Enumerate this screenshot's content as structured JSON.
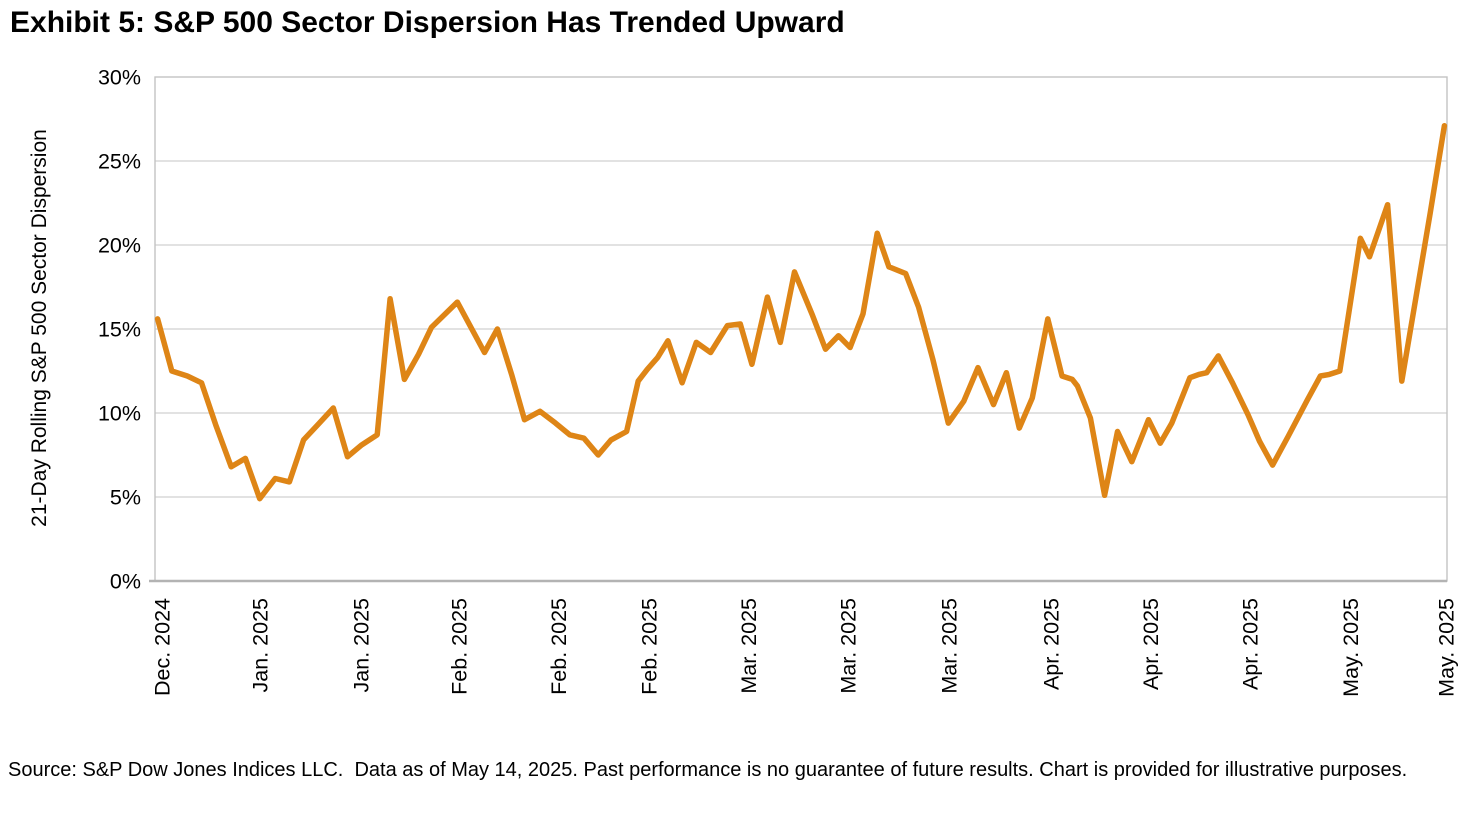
{
  "title": "Exhibit 5: S&P 500 Sector Dispersion Has Trended Upward",
  "footnote": "Source: S&P Dow Jones Indices LLC.  Data as of May 14, 2025. Past performance is no guarantee of future results. Chart is provided for illustrative purposes.",
  "colors": {
    "line": "#DE8516",
    "gridline": "#D9D9D9",
    "plot_border": "#C3C3C3",
    "x_axis": "#B3B3B3",
    "text": "#000000",
    "background": "#FFFFFF"
  },
  "chart_data": {
    "type": "line",
    "title": "Exhibit 5: S&P 500 Sector Dispersion Has Trended Upward",
    "xlabel": "",
    "ylabel": "21-Day Rolling S&P 500 Sector Dispersion",
    "ylim": [
      0,
      30
    ],
    "y_ticks": [
      0,
      5,
      10,
      15,
      20,
      25,
      30
    ],
    "y_tick_labels": [
      "0%",
      "5%",
      "10%",
      "15%",
      "20%",
      "25%",
      "30%"
    ],
    "grid": "horizontal",
    "legend": "none",
    "x_ticks": [
      {
        "pos": 0.005,
        "label": "Dec. 2024"
      },
      {
        "pos": 0.081,
        "label": "Jan. 2025"
      },
      {
        "pos": 0.159,
        "label": "Jan. 2025"
      },
      {
        "pos": 0.235,
        "label": "Feb. 2025"
      },
      {
        "pos": 0.312,
        "label": "Feb. 2025"
      },
      {
        "pos": 0.382,
        "label": "Feb. 2025"
      },
      {
        "pos": 0.459,
        "label": "Mar. 2025"
      },
      {
        "pos": 0.536,
        "label": "Mar. 2025"
      },
      {
        "pos": 0.614,
        "label": "Mar. 2025"
      },
      {
        "pos": 0.693,
        "label": "Apr. 2025"
      },
      {
        "pos": 0.77,
        "label": "Apr. 2025"
      },
      {
        "pos": 0.847,
        "label": "Apr. 2025"
      },
      {
        "pos": 0.925,
        "label": "May. 2025"
      },
      {
        "pos": 0.999,
        "label": "May. 2025"
      }
    ],
    "series": [
      {
        "name": "21-Day Rolling S&P 500 Sector Dispersion (%)",
        "points": [
          [
            0.002,
            15.6
          ],
          [
            0.013,
            12.5
          ],
          [
            0.025,
            12.2
          ],
          [
            0.036,
            11.8
          ],
          [
            0.047,
            9.3
          ],
          [
            0.059,
            6.8
          ],
          [
            0.07,
            7.3
          ],
          [
            0.081,
            4.9
          ],
          [
            0.093,
            6.1
          ],
          [
            0.104,
            5.9
          ],
          [
            0.115,
            8.4
          ],
          [
            0.126,
            9.3
          ],
          [
            0.138,
            10.3
          ],
          [
            0.149,
            7.4
          ],
          [
            0.16,
            8.1
          ],
          [
            0.172,
            8.7
          ],
          [
            0.182,
            16.8
          ],
          [
            0.193,
            12.0
          ],
          [
            0.204,
            13.5
          ],
          [
            0.214,
            15.1
          ],
          [
            0.234,
            16.6
          ],
          [
            0.255,
            13.6
          ],
          [
            0.265,
            15.0
          ],
          [
            0.276,
            12.3
          ],
          [
            0.286,
            9.6
          ],
          [
            0.298,
            10.1
          ],
          [
            0.31,
            9.4
          ],
          [
            0.321,
            8.7
          ],
          [
            0.332,
            8.5
          ],
          [
            0.343,
            7.5
          ],
          [
            0.353,
            8.4
          ],
          [
            0.365,
            8.9
          ],
          [
            0.374,
            11.9
          ],
          [
            0.381,
            12.6
          ],
          [
            0.389,
            13.3
          ],
          [
            0.397,
            14.3
          ],
          [
            0.408,
            11.8
          ],
          [
            0.419,
            14.2
          ],
          [
            0.43,
            13.6
          ],
          [
            0.443,
            15.2
          ],
          [
            0.453,
            15.3
          ],
          [
            0.462,
            12.9
          ],
          [
            0.474,
            16.9
          ],
          [
            0.484,
            14.2
          ],
          [
            0.495,
            18.4
          ],
          [
            0.509,
            15.8
          ],
          [
            0.519,
            13.8
          ],
          [
            0.529,
            14.6
          ],
          [
            0.538,
            13.9
          ],
          [
            0.548,
            15.9
          ],
          [
            0.559,
            20.7
          ],
          [
            0.568,
            18.7
          ],
          [
            0.581,
            18.3
          ],
          [
            0.591,
            16.3
          ],
          [
            0.602,
            13.2
          ],
          [
            0.614,
            9.4
          ],
          [
            0.626,
            10.7
          ],
          [
            0.637,
            12.7
          ],
          [
            0.649,
            10.5
          ],
          [
            0.659,
            12.4
          ],
          [
            0.669,
            9.1
          ],
          [
            0.679,
            10.9
          ],
          [
            0.691,
            15.6
          ],
          [
            0.702,
            12.2
          ],
          [
            0.71,
            12.0
          ],
          [
            0.714,
            11.6
          ],
          [
            0.724,
            9.7
          ],
          [
            0.735,
            5.1
          ],
          [
            0.745,
            8.9
          ],
          [
            0.756,
            7.1
          ],
          [
            0.769,
            9.6
          ],
          [
            0.778,
            8.2
          ],
          [
            0.787,
            9.4
          ],
          [
            0.801,
            12.1
          ],
          [
            0.808,
            12.3
          ],
          [
            0.814,
            12.4
          ],
          [
            0.823,
            13.4
          ],
          [
            0.834,
            11.8
          ],
          [
            0.846,
            9.9
          ],
          [
            0.855,
            8.3
          ],
          [
            0.865,
            6.9
          ],
          [
            0.877,
            8.6
          ],
          [
            0.892,
            10.8
          ],
          [
            0.902,
            12.2
          ],
          [
            0.909,
            12.3
          ],
          [
            0.917,
            12.5
          ],
          [
            0.933,
            20.4
          ],
          [
            0.94,
            19.3
          ],
          [
            0.954,
            22.4
          ],
          [
            0.965,
            11.9
          ],
          [
            0.976,
            16.9
          ],
          [
            0.987,
            21.9
          ],
          [
            0.998,
            27.1
          ]
        ]
      }
    ]
  }
}
